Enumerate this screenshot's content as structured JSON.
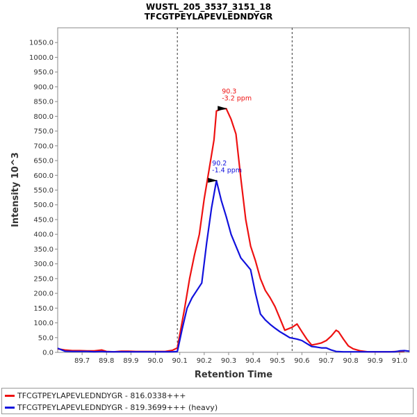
{
  "chart_data": {
    "type": "line",
    "title": "WUSTL_205_3537_3151_18",
    "subtitle": "TFCGTPEYLAPEVLEDNDYGR",
    "xlabel": "Retention Time",
    "ylabel": "Intensity 10^3",
    "xlim": [
      89.6,
      91.04
    ],
    "ylim": [
      0,
      1100
    ],
    "x_ticks": [
      "89.7",
      "89.8",
      "89.9",
      "90.0",
      "90.1",
      "90.2",
      "90.3",
      "90.4",
      "90.5",
      "90.6",
      "90.7",
      "90.8",
      "90.9",
      "91.0"
    ],
    "y_ticks": [
      "0.0",
      "50.0",
      "100.0",
      "150.0",
      "200.0",
      "250.0",
      "300.0",
      "350.0",
      "400.0",
      "450.0",
      "500.0",
      "550.0",
      "600.0",
      "650.0",
      "700.0",
      "750.0",
      "800.0",
      "850.0",
      "900.0",
      "950.0",
      "1000.0",
      "1050.0"
    ],
    "vlines": [
      90.09,
      90.56
    ],
    "series": [
      {
        "name": "TFCGTPEYLAPEVLEDNDYGR - 816.0338+++",
        "color": "#ee1111",
        "points": [
          [
            89.6,
            12
          ],
          [
            89.63,
            8
          ],
          [
            89.66,
            6
          ],
          [
            89.69,
            6
          ],
          [
            89.72,
            5
          ],
          [
            89.75,
            5
          ],
          [
            89.78,
            8
          ],
          [
            89.8,
            3
          ],
          [
            89.83,
            2
          ],
          [
            89.86,
            4
          ],
          [
            89.89,
            4
          ],
          [
            89.92,
            3
          ],
          [
            89.95,
            3
          ],
          [
            89.98,
            3
          ],
          [
            90.01,
            3
          ],
          [
            90.04,
            3
          ],
          [
            90.07,
            7
          ],
          [
            90.09,
            15
          ],
          [
            90.1,
            60
          ],
          [
            90.12,
            150
          ],
          [
            90.14,
            250
          ],
          [
            90.16,
            330
          ],
          [
            90.18,
            400
          ],
          [
            90.2,
            520
          ],
          [
            90.22,
            620
          ],
          [
            90.24,
            720
          ],
          [
            90.25,
            818
          ],
          [
            90.27,
            825
          ],
          [
            90.29,
            826
          ],
          [
            90.31,
            790
          ],
          [
            90.33,
            740
          ],
          [
            90.35,
            590
          ],
          [
            90.37,
            450
          ],
          [
            90.39,
            360
          ],
          [
            90.41,
            310
          ],
          [
            90.43,
            250
          ],
          [
            90.45,
            210
          ],
          [
            90.47,
            185
          ],
          [
            90.49,
            155
          ],
          [
            90.51,
            115
          ],
          [
            90.53,
            75
          ],
          [
            90.56,
            85
          ],
          [
            90.58,
            96
          ],
          [
            90.6,
            70
          ],
          [
            90.62,
            45
          ],
          [
            90.64,
            25
          ],
          [
            90.66,
            28
          ],
          [
            90.68,
            32
          ],
          [
            90.7,
            40
          ],
          [
            90.72,
            55
          ],
          [
            90.74,
            75
          ],
          [
            90.75,
            70
          ],
          [
            90.77,
            45
          ],
          [
            90.79,
            22
          ],
          [
            90.81,
            12
          ],
          [
            90.84,
            5
          ],
          [
            90.87,
            2
          ],
          [
            90.9,
            2
          ],
          [
            90.93,
            2
          ],
          [
            90.96,
            2
          ],
          [
            90.99,
            3
          ],
          [
            91.02,
            4
          ]
        ]
      },
      {
        "name": "TFCGTPEYLAPEVLEDNDYGR - 819.3699+++ (heavy)",
        "color": "#1111dd",
        "points": [
          [
            89.6,
            14
          ],
          [
            89.63,
            4
          ],
          [
            89.66,
            3
          ],
          [
            89.69,
            3
          ],
          [
            89.72,
            3
          ],
          [
            89.75,
            2
          ],
          [
            89.78,
            3
          ],
          [
            89.8,
            2
          ],
          [
            89.83,
            2
          ],
          [
            89.86,
            2
          ],
          [
            89.89,
            2
          ],
          [
            89.92,
            2
          ],
          [
            89.95,
            2
          ],
          [
            89.98,
            2
          ],
          [
            90.01,
            2
          ],
          [
            90.04,
            2
          ],
          [
            90.07,
            2
          ],
          [
            90.09,
            3
          ],
          [
            90.11,
            80
          ],
          [
            90.13,
            150
          ],
          [
            90.15,
            185
          ],
          [
            90.17,
            210
          ],
          [
            90.19,
            235
          ],
          [
            90.21,
            370
          ],
          [
            90.23,
            490
          ],
          [
            90.25,
            582
          ],
          [
            90.27,
            515
          ],
          [
            90.29,
            460
          ],
          [
            90.31,
            400
          ],
          [
            90.33,
            360
          ],
          [
            90.35,
            320
          ],
          [
            90.37,
            300
          ],
          [
            90.39,
            280
          ],
          [
            90.41,
            200
          ],
          [
            90.43,
            130
          ],
          [
            90.45,
            110
          ],
          [
            90.47,
            95
          ],
          [
            90.49,
            82
          ],
          [
            90.51,
            70
          ],
          [
            90.53,
            60
          ],
          [
            90.55,
            50
          ],
          [
            90.58,
            45
          ],
          [
            90.6,
            40
          ],
          [
            90.62,
            30
          ],
          [
            90.64,
            20
          ],
          [
            90.66,
            18
          ],
          [
            90.68,
            15
          ],
          [
            90.7,
            15
          ],
          [
            90.72,
            8
          ],
          [
            90.74,
            3
          ],
          [
            90.77,
            2
          ],
          [
            90.8,
            2
          ],
          [
            90.85,
            2
          ],
          [
            90.9,
            2
          ],
          [
            90.95,
            2
          ],
          [
            90.98,
            2
          ],
          [
            91.0,
            5
          ],
          [
            91.02,
            6
          ],
          [
            91.04,
            4
          ]
        ]
      }
    ],
    "annotations": [
      {
        "x": 90.295,
        "y": 826,
        "lines": [
          "90.3",
          "-3.2 ppm"
        ],
        "color": "#ee1111"
      },
      {
        "x": 90.255,
        "y": 582,
        "lines": [
          "90.2",
          "-1.4 ppm"
        ],
        "color": "#1111dd"
      }
    ],
    "legend_position": "bottom"
  }
}
